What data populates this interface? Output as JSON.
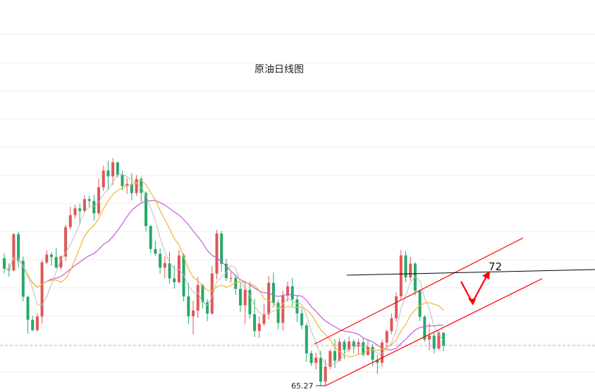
{
  "chart_data": {
    "type": "candlestick",
    "title": "原油日线图",
    "annotation_target": "72",
    "low_label": "65.27",
    "colors": {
      "up": "#e05656",
      "down": "#27a86a",
      "ma_fast": "#bdbdbd",
      "ma_mid": "#f2b431",
      "ma_slow": "#c15cd6",
      "trend": "#ff0000",
      "resistance": "#000000",
      "grid": "#eeeeee",
      "current_price_line": "#f3a0a0"
    },
    "y_scale": {
      "ref_low": 65.27,
      "ref_high": 72.0
    },
    "candles": [
      [
        72.84,
        73.15,
        71.95,
        72.22
      ],
      [
        72.22,
        72.53,
        71.75,
        72.12
      ],
      [
        72.12,
        74.33,
        72.05,
        74.27
      ],
      [
        74.27,
        74.43,
        72.27,
        72.69
      ],
      [
        72.69,
        72.95,
        70.28,
        70.55
      ],
      [
        70.55,
        70.61,
        68.37,
        69.18
      ],
      [
        69.18,
        69.42,
        68.49,
        68.57
      ],
      [
        68.57,
        69.57,
        68.49,
        69.38
      ],
      [
        69.38,
        72.73,
        68.97,
        72.59
      ],
      [
        72.59,
        73.31,
        72.48,
        73.06
      ],
      [
        73.06,
        73.22,
        72.4,
        72.91
      ],
      [
        72.91,
        73.45,
        72.22,
        72.29
      ],
      [
        72.29,
        73.01,
        72.19,
        72.94
      ],
      [
        72.94,
        74.84,
        72.67,
        74.69
      ],
      [
        74.69,
        75.91,
        74.54,
        75.4
      ],
      [
        75.4,
        76.02,
        75.2,
        75.8
      ],
      [
        75.8,
        76.07,
        74.86,
        75.65
      ],
      [
        75.65,
        76.58,
        75.58,
        76.35
      ],
      [
        76.35,
        76.55,
        75.91,
        76.24
      ],
      [
        76.24,
        76.6,
        75.08,
        75.51
      ],
      [
        75.51,
        77.54,
        75.38,
        77.05
      ],
      [
        77.05,
        78.34,
        76.85,
        78.05
      ],
      [
        78.05,
        78.64,
        76.91,
        77.7
      ],
      [
        77.7,
        78.78,
        77.17,
        78.53
      ],
      [
        78.53,
        78.57,
        77.64,
        77.78
      ],
      [
        77.78,
        78.03,
        76.88,
        77.12
      ],
      [
        77.12,
        77.6,
        76.67,
        77.25
      ],
      [
        77.25,
        77.89,
        76.28,
        76.71
      ],
      [
        76.71,
        77.78,
        76.53,
        77.54
      ],
      [
        77.54,
        77.69,
        76.17,
        76.72
      ],
      [
        76.72,
        76.81,
        74.43,
        74.75
      ],
      [
        74.75,
        74.82,
        73.15,
        73.39
      ],
      [
        73.39,
        73.87,
        72.98,
        73.11
      ],
      [
        73.11,
        73.42,
        71.92,
        72.28
      ],
      [
        72.28,
        72.96,
        71.67,
        72.55
      ],
      [
        72.55,
        73.23,
        71.33,
        71.64
      ],
      [
        71.64,
        72.42,
        71.04,
        71.41
      ],
      [
        71.41,
        73.35,
        71.36,
        73.01
      ],
      [
        73.01,
        73.13,
        70.27,
        70.57
      ],
      [
        70.57,
        71.36,
        68.93,
        69.39
      ],
      [
        69.39,
        70.31,
        68.31,
        69.73
      ],
      [
        69.73,
        71.74,
        69.29,
        71.24
      ],
      [
        71.24,
        71.31,
        69.85,
        70.23
      ],
      [
        70.23,
        70.42,
        69.1,
        69.55
      ],
      [
        69.55,
        72.37,
        69.49,
        71.93
      ],
      [
        71.93,
        74.53,
        71.58,
        74.31
      ],
      [
        74.31,
        74.46,
        72.02,
        72.51
      ],
      [
        72.51,
        72.8,
        71.49,
        71.66
      ],
      [
        71.66,
        72.02,
        71.39,
        71.67
      ],
      [
        71.67,
        71.87,
        70.67,
        71.02
      ],
      [
        71.02,
        71.31,
        69.65,
        70.04
      ],
      [
        70.04,
        71.46,
        68.94,
        70.96
      ],
      [
        70.96,
        71.45,
        69.25,
        69.51
      ],
      [
        69.51,
        70.43,
        68.16,
        68.52
      ],
      [
        68.52,
        69.39,
        68.11,
        68.95
      ],
      [
        68.95,
        70.14,
        68.8,
        69.51
      ],
      [
        69.51,
        71.78,
        69.21,
        71.38
      ],
      [
        71.38,
        71.99,
        69.89,
        70.19
      ],
      [
        70.19,
        70.38,
        68.62,
        69.0
      ],
      [
        69.0,
        70.91,
        68.52,
        70.61
      ],
      [
        70.61,
        71.45,
        70.25,
        71.17
      ],
      [
        71.17,
        71.67,
        69.97,
        70.39
      ],
      [
        70.39,
        70.62,
        69.05,
        69.56
      ],
      [
        69.56,
        69.87,
        68.63,
        68.85
      ],
      [
        68.85,
        68.98,
        66.7,
        67.19
      ],
      [
        67.19,
        67.35,
        66.45,
        66.62
      ],
      [
        66.62,
        67.23,
        66.22,
        66.93
      ],
      [
        66.93,
        67.34,
        65.27,
        65.51
      ],
      [
        65.51,
        66.84,
        65.27,
        66.4
      ],
      [
        66.4,
        67.44,
        66.25,
        67.32
      ],
      [
        67.32,
        68.03,
        66.32,
        66.75
      ],
      [
        66.75,
        68.11,
        66.71,
        67.88
      ],
      [
        67.88,
        68.02,
        66.86,
        67.41
      ],
      [
        67.41,
        68.19,
        67.28,
        67.89
      ],
      [
        67.89,
        68.02,
        67.19,
        67.6
      ],
      [
        67.6,
        68.06,
        67.1,
        67.85
      ],
      [
        67.85,
        68.09,
        67.01,
        67.1
      ],
      [
        67.1,
        68.03,
        67.04,
        67.57
      ],
      [
        67.57,
        67.73,
        66.43,
        66.81
      ],
      [
        66.81,
        67.11,
        65.97,
        66.63
      ],
      [
        66.63,
        68.02,
        66.4,
        67.83
      ],
      [
        67.83,
        68.6,
        67.48,
        68.51
      ],
      [
        68.51,
        69.56,
        68.32,
        69.27
      ],
      [
        69.27,
        70.82,
        69.07,
        70.58
      ],
      [
        70.58,
        73.33,
        70.37,
        73.01
      ],
      [
        73.01,
        73.28,
        71.43,
        71.7
      ],
      [
        71.7,
        72.92,
        71.51,
        72.52
      ],
      [
        72.52,
        72.6,
        70.64,
        70.91
      ],
      [
        70.91,
        70.96,
        69.11,
        69.36
      ],
      [
        69.36,
        69.46,
        67.87,
        68.01
      ],
      [
        68.01,
        68.96,
        67.37,
        68.24
      ],
      [
        68.24,
        68.49,
        67.2,
        67.47
      ],
      [
        67.47,
        68.54,
        67.39,
        68.41
      ],
      [
        68.41,
        68.46,
        67.32,
        67.65
      ]
    ]
  }
}
